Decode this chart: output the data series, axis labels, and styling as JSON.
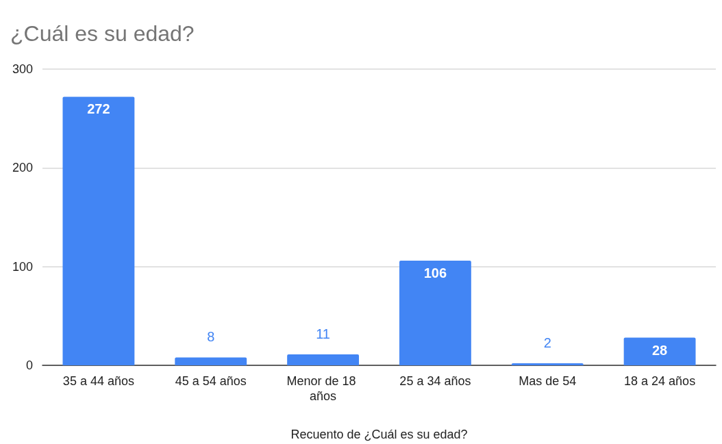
{
  "chart_data": {
    "type": "bar",
    "title": "¿Cuál es su edad?",
    "xlabel": "Recuento de ¿Cuál es su edad?",
    "categories": [
      "35 a 44 años",
      "45 a 54 años",
      "Menor de 18 años",
      "25 a 34 años",
      "Mas de 54",
      "18 a 24 años"
    ],
    "values": [
      272,
      8,
      11,
      106,
      2,
      28
    ],
    "color": "#4285f4",
    "ylim": [
      0,
      300
    ],
    "yticks": [
      0,
      100,
      200,
      300
    ],
    "grid": "y",
    "data_labels": true
  }
}
